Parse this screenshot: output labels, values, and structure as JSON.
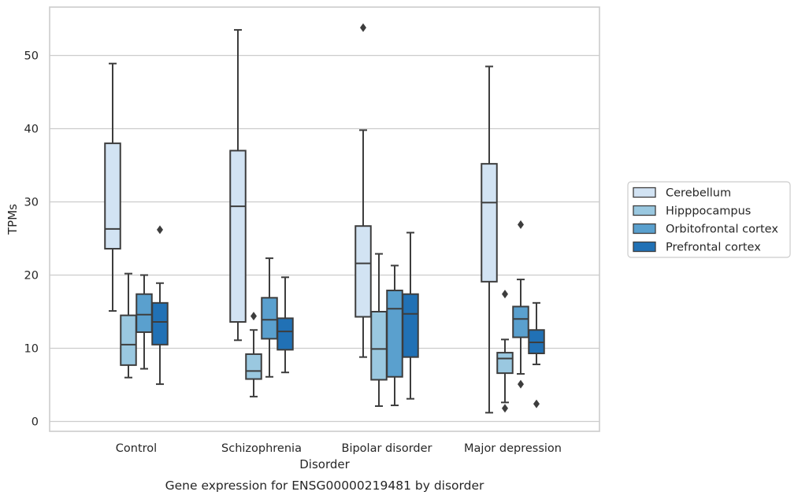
{
  "chart_data": {
    "type": "box",
    "caption": "Gene expression for ENSG00000219481 by disorder",
    "xlabel": "Disorder",
    "ylabel": "TPMs",
    "ylim": [
      -1.3,
      55.5
    ],
    "yticks": [
      0,
      10,
      20,
      30,
      40,
      50
    ],
    "grid": true,
    "legend_position": "right",
    "categories": [
      "Control",
      "Schizophrenia",
      "Bipolar disorder",
      "Major depression"
    ],
    "series": [
      {
        "name": "Cerebellum",
        "color": "#d2e3f3",
        "boxes": [
          {
            "whisker_low": 15.1,
            "q1": 23.6,
            "median": 26.3,
            "q3": 38.0,
            "whisker_high": 48.9,
            "outliers": []
          },
          {
            "whisker_low": 11.1,
            "q1": 13.6,
            "median": 29.4,
            "q3": 37.0,
            "whisker_high": 53.5,
            "outliers": []
          },
          {
            "whisker_low": 8.8,
            "q1": 14.3,
            "median": 21.6,
            "q3": 26.7,
            "whisker_high": 39.8,
            "outliers": [
              53.8
            ]
          },
          {
            "whisker_low": 1.2,
            "q1": 19.1,
            "median": 29.9,
            "q3": 35.2,
            "whisker_high": 48.5,
            "outliers": []
          }
        ]
      },
      {
        "name": "Hipppocampus",
        "color": "#9ac8e0",
        "boxes": [
          {
            "whisker_low": 6.0,
            "q1": 7.7,
            "median": 10.5,
            "q3": 14.5,
            "whisker_high": 20.2,
            "outliers": []
          },
          {
            "whisker_low": 3.4,
            "q1": 5.8,
            "median": 6.9,
            "q3": 9.2,
            "whisker_high": 12.5,
            "outliers": [
              14.4
            ]
          },
          {
            "whisker_low": 2.1,
            "q1": 5.7,
            "median": 9.9,
            "q3": 15.0,
            "whisker_high": 22.9,
            "outliers": []
          },
          {
            "whisker_low": 2.6,
            "q1": 6.6,
            "median": 8.6,
            "q3": 9.4,
            "whisker_high": 11.2,
            "outliers": [
              1.8,
              17.4
            ]
          }
        ]
      },
      {
        "name": "Orbitofrontal cortex",
        "color": "#5aa0ce",
        "boxes": [
          {
            "whisker_low": 7.2,
            "q1": 12.2,
            "median": 14.6,
            "q3": 17.4,
            "whisker_high": 20.0,
            "outliers": []
          },
          {
            "whisker_low": 6.1,
            "q1": 11.3,
            "median": 13.9,
            "q3": 16.9,
            "whisker_high": 22.3,
            "outliers": []
          },
          {
            "whisker_low": 2.2,
            "q1": 6.1,
            "median": 15.4,
            "q3": 17.9,
            "whisker_high": 21.3,
            "outliers": []
          },
          {
            "whisker_low": 6.5,
            "q1": 11.5,
            "median": 14.0,
            "q3": 15.7,
            "whisker_high": 19.4,
            "outliers": [
              5.1,
              26.9
            ]
          }
        ]
      },
      {
        "name": "Prefrontal cortex",
        "color": "#2171b5",
        "boxes": [
          {
            "whisker_low": 5.1,
            "q1": 10.5,
            "median": 13.6,
            "q3": 16.2,
            "whisker_high": 18.9,
            "outliers": [
              26.2
            ]
          },
          {
            "whisker_low": 6.7,
            "q1": 9.8,
            "median": 12.3,
            "q3": 14.1,
            "whisker_high": 19.7,
            "outliers": []
          },
          {
            "whisker_low": 3.1,
            "q1": 8.8,
            "median": 14.7,
            "q3": 17.4,
            "whisker_high": 25.8,
            "outliers": []
          },
          {
            "whisker_low": 7.8,
            "q1": 9.3,
            "median": 10.8,
            "q3": 12.5,
            "whisker_high": 16.2,
            "outliers": [
              2.4
            ]
          }
        ]
      }
    ]
  }
}
